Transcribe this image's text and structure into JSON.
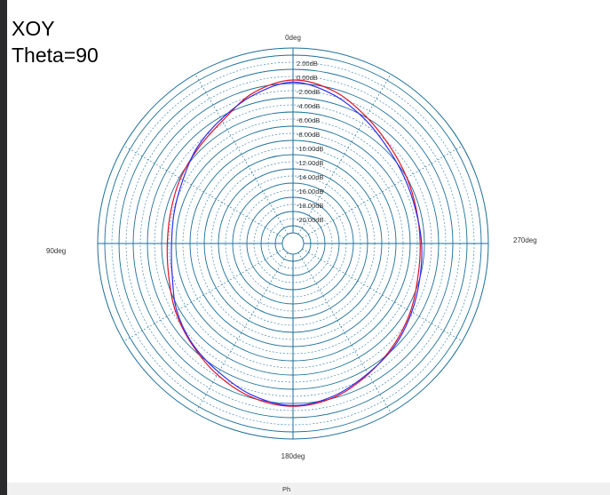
{
  "caption": {
    "line1": "XOY",
    "line2": "Theta=90"
  },
  "footer_mark": "Ph",
  "colors": {
    "ring": "#1d6f99",
    "grid": "#2a78a6",
    "series_red": "#e0112a",
    "series_blue": "#2e2ef0",
    "frame_bg": "#ffffff",
    "outer_bg": "#2b2b2d"
  },
  "chart_data": {
    "type": "polar-line",
    "angle_labels": [
      {
        "deg": 0,
        "text": "0deg"
      },
      {
        "deg": 90,
        "text": "90deg"
      },
      {
        "deg": 180,
        "text": "180deg"
      },
      {
        "deg": 270,
        "text": "270deg"
      }
    ],
    "angle_direction": "counterclockwise, 0deg at top",
    "radial_unit": "dB",
    "radial_ticks": [
      "2.00dB",
      "0.00dB",
      "-2.00dB",
      "-4.00dB",
      "-6.00dB",
      "-8.00dB",
      "-10.00dB",
      "-12.00dB",
      "-14.00dB",
      "-16.00dB",
      "-18.00dB",
      "-20.00dB"
    ],
    "rlim": [
      -22,
      4
    ],
    "grid": true,
    "series": [
      {
        "color": "#e0112a",
        "theta": [
          0,
          15,
          30,
          45,
          60,
          75,
          90,
          105,
          120,
          135,
          150,
          165,
          180,
          195,
          210,
          225,
          240,
          255,
          270,
          285,
          300,
          315,
          330,
          345
        ],
        "r": [
          -0.5,
          -1.6,
          -3.6,
          -4.6,
          -5.2,
          -5.7,
          -5.8,
          -5.4,
          -4.4,
          -3.4,
          -2.2,
          -1.1,
          -0.6,
          -1.1,
          -2.3,
          -3.4,
          -4.4,
          -5.3,
          -5.6,
          -5.5,
          -5.0,
          -4.2,
          -2.9,
          -1.3
        ]
      },
      {
        "color": "#2e2ef0",
        "theta": [
          0,
          15,
          30,
          45,
          60,
          75,
          90,
          105,
          120,
          135,
          150,
          165,
          180,
          195,
          210,
          225,
          240,
          255,
          270,
          285,
          300,
          315,
          330,
          345
        ],
        "r": [
          -0.8,
          -1.9,
          -3.3,
          -4.4,
          -5.6,
          -6.2,
          -6.4,
          -5.9,
          -4.6,
          -3.5,
          -2.6,
          -1.4,
          -0.7,
          -1.3,
          -2.4,
          -3.2,
          -4.2,
          -5.0,
          -5.4,
          -5.6,
          -5.3,
          -4.6,
          -3.3,
          -1.8
        ]
      }
    ]
  }
}
